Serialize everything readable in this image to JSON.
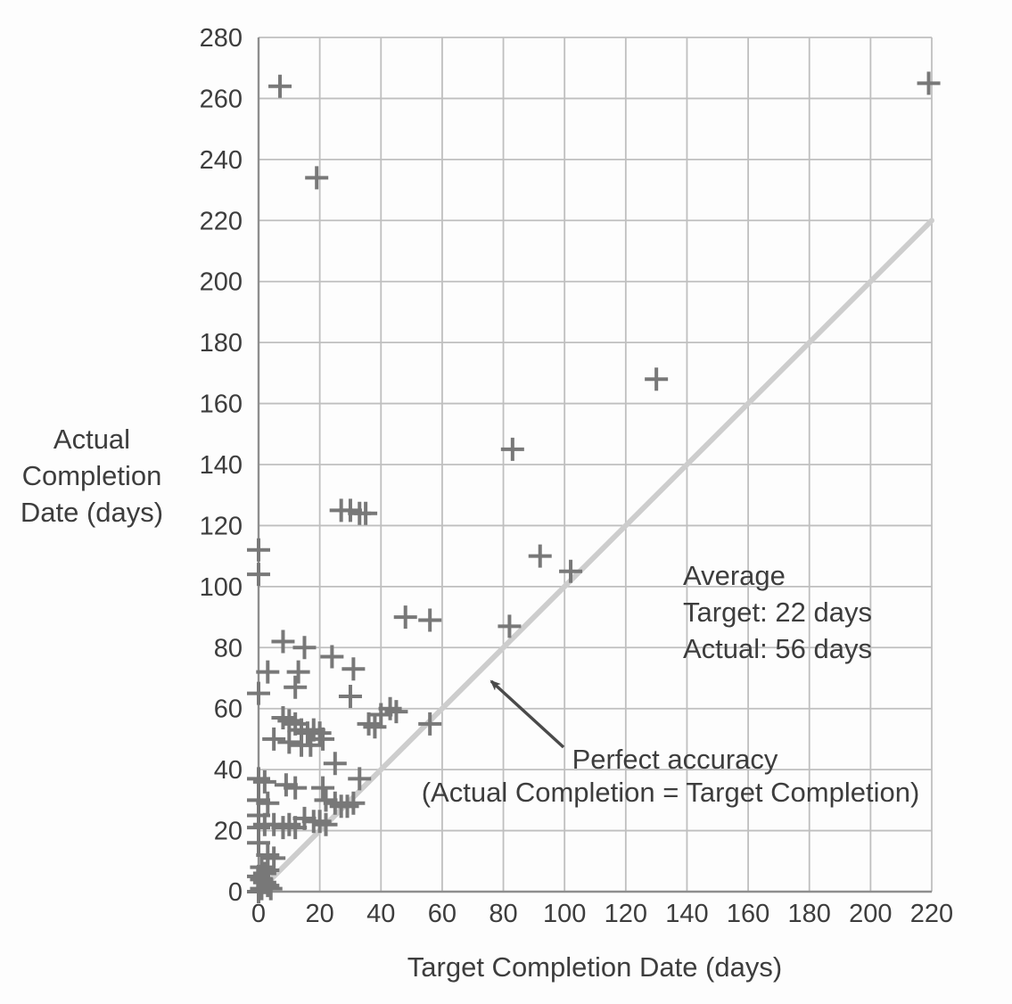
{
  "chart_data": {
    "type": "scatter",
    "title": "",
    "xlabel": "Target Completion Date (days)",
    "ylabel_lines": [
      "Actual",
      "Completion",
      "Date (days)"
    ],
    "xlim": [
      0,
      220
    ],
    "ylim": [
      0,
      280
    ],
    "xtick_step": 20,
    "ytick_step": 20,
    "grid": true,
    "legend": "none",
    "marker": "plus",
    "points": [
      [
        7,
        264
      ],
      [
        219,
        265
      ],
      [
        19,
        234
      ],
      [
        130,
        168
      ],
      [
        83,
        145
      ],
      [
        27,
        125
      ],
      [
        30,
        125
      ],
      [
        33,
        124
      ],
      [
        35,
        124
      ],
      [
        0,
        112
      ],
      [
        0,
        104
      ],
      [
        92,
        110
      ],
      [
        102,
        105
      ],
      [
        48,
        90
      ],
      [
        56,
        89
      ],
      [
        82,
        87
      ],
      [
        8,
        82
      ],
      [
        15,
        80
      ],
      [
        24,
        77
      ],
      [
        3,
        72
      ],
      [
        13,
        72
      ],
      [
        31,
        73
      ],
      [
        12,
        67
      ],
      [
        0,
        65
      ],
      [
        30,
        64
      ],
      [
        40,
        58
      ],
      [
        43,
        60
      ],
      [
        45,
        59
      ],
      [
        8,
        57
      ],
      [
        10,
        56
      ],
      [
        36,
        55
      ],
      [
        38,
        54
      ],
      [
        56,
        55
      ],
      [
        12,
        55
      ],
      [
        14,
        53
      ],
      [
        16,
        52
      ],
      [
        18,
        53
      ],
      [
        20,
        52
      ],
      [
        5,
        50
      ],
      [
        10,
        49
      ],
      [
        14,
        48
      ],
      [
        17,
        48
      ],
      [
        21,
        50
      ],
      [
        25,
        42
      ],
      [
        33,
        37
      ],
      [
        0,
        37
      ],
      [
        2,
        36
      ],
      [
        9,
        35
      ],
      [
        12,
        34
      ],
      [
        21,
        34
      ],
      [
        0,
        30
      ],
      [
        3,
        29
      ],
      [
        22,
        30
      ],
      [
        25,
        29
      ],
      [
        27,
        28
      ],
      [
        29,
        28
      ],
      [
        31,
        29
      ],
      [
        0,
        25
      ],
      [
        15,
        24
      ],
      [
        18,
        23
      ],
      [
        20,
        23
      ],
      [
        22,
        22
      ],
      [
        2,
        22
      ],
      [
        5,
        22
      ],
      [
        8,
        21
      ],
      [
        10,
        22
      ],
      [
        12,
        21
      ],
      [
        0,
        21
      ],
      [
        0,
        16
      ],
      [
        3,
        12
      ],
      [
        5,
        11
      ],
      [
        1,
        8
      ],
      [
        3,
        7
      ],
      [
        2,
        6
      ],
      [
        0,
        5
      ],
      [
        1,
        4
      ],
      [
        2,
        3
      ],
      [
        3,
        2
      ],
      [
        1,
        1
      ],
      [
        4,
        1
      ],
      [
        0,
        0
      ]
    ],
    "reference_line": {
      "from": [
        0,
        0
      ],
      "to": [
        220,
        220
      ]
    },
    "annotations": {
      "average": {
        "lines": [
          "Average",
          "Target: 22 days",
          "Actual: 56 days"
        ]
      },
      "perfect_accuracy": {
        "lines": [
          "Perfect accuracy",
          "(Actual Completion = Target Completion)"
        ]
      }
    },
    "colors": {
      "grid": "#bfbfbf",
      "axis": "#8e8e8e",
      "marker": "#787878",
      "reference_line": "#cdcdcd",
      "text": "#3d3d3d",
      "arrow": "#4a4a4a"
    }
  }
}
